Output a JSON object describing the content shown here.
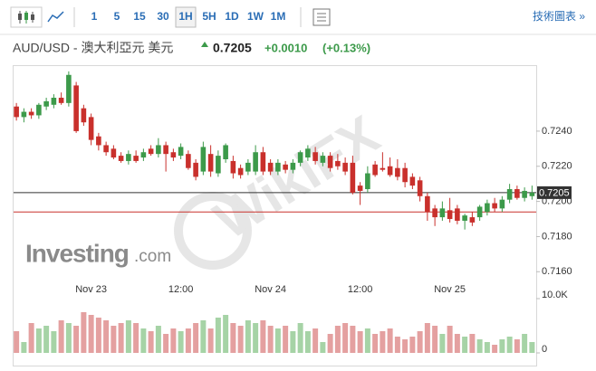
{
  "toolbar": {
    "intervals": [
      "1",
      "5",
      "15",
      "30",
      "1H",
      "5H",
      "1D",
      "1W",
      "1M"
    ],
    "active_interval": "1H",
    "link": "技術圖表 »"
  },
  "header": {
    "symbol": "AUD/USD - 澳大利亞元 美元",
    "price": "0.7205",
    "change": "+0.0010",
    "change_pct": "(+0.13%)"
  },
  "watermark": {
    "brand": "Investing",
    "domain": ".com",
    "overlay": "WikiFX"
  },
  "chart_data": {
    "type": "candlestick",
    "categories": [
      null,
      null,
      null,
      null,
      null,
      null,
      null,
      null,
      null,
      null,
      "Nov 23",
      null,
      null,
      null,
      null,
      null,
      null,
      null,
      null,
      null,
      null,
      null,
      "12:00",
      null,
      null,
      null,
      null,
      null,
      null,
      null,
      null,
      null,
      null,
      null,
      "Nov 24",
      null,
      null,
      null,
      null,
      null,
      null,
      null,
      null,
      null,
      null,
      null,
      "12:00",
      null,
      null,
      null,
      null,
      null,
      null,
      null,
      null,
      null,
      null,
      null,
      "Nov 25",
      null,
      null,
      null,
      null,
      null,
      null,
      null,
      null,
      null,
      null,
      null
    ],
    "open": [
      0.7254,
      0.7248,
      0.7251,
      0.7249,
      0.7254,
      0.7255,
      0.7259,
      0.7256,
      0.7266,
      0.7253,
      0.7248,
      0.7237,
      0.7232,
      0.723,
      0.7226,
      0.7223,
      0.7226,
      0.7225,
      0.723,
      0.7227,
      0.7232,
      0.7228,
      0.7226,
      0.7227,
      0.7222,
      0.7217,
      0.7227,
      0.7216,
      0.7224,
      0.7223,
      0.7219,
      0.7217,
      0.7217,
      0.7228,
      0.7222,
      0.7217,
      0.7221,
      0.7218,
      0.7222,
      0.7225,
      0.7228,
      0.7222,
      0.7226,
      0.7223,
      0.7222,
      0.7222,
      0.7209,
      0.7207,
      0.7221,
      0.7219,
      0.722,
      0.7219,
      0.7219,
      0.7214,
      0.7212,
      0.7203,
      0.7196,
      0.7191,
      0.7195,
      0.7196,
      0.7189,
      0.7191,
      0.7191,
      0.7194,
      0.7199,
      0.7196,
      0.7201,
      0.7207,
      0.7202,
      0.7203
    ],
    "high": [
      0.7256,
      0.7253,
      0.7253,
      0.7256,
      0.7259,
      0.7261,
      0.7262,
      0.7274,
      0.7268,
      0.7255,
      0.725,
      0.7239,
      0.7234,
      0.7232,
      0.7228,
      0.7229,
      0.7229,
      0.723,
      0.7232,
      0.7236,
      0.7234,
      0.723,
      0.7233,
      0.7229,
      0.7224,
      0.7234,
      0.7232,
      0.7229,
      0.7233,
      0.7226,
      0.7221,
      0.7224,
      0.7232,
      0.7231,
      0.7224,
      0.7224,
      0.7223,
      0.7224,
      0.7229,
      0.7232,
      0.7231,
      0.7228,
      0.7228,
      0.7227,
      0.7225,
      0.7226,
      0.7211,
      0.722,
      0.7223,
      0.7228,
      0.7225,
      0.7224,
      0.7222,
      0.7216,
      0.7214,
      0.7205,
      0.7198,
      0.72,
      0.7202,
      0.7198,
      0.7193,
      0.7194,
      0.7198,
      0.7201,
      0.7202,
      0.7203,
      0.721,
      0.7209,
      0.7208,
      0.7209
    ],
    "low": [
      0.7246,
      0.7245,
      0.7247,
      0.7247,
      0.7252,
      0.7253,
      0.7255,
      0.7254,
      0.7239,
      0.7243,
      0.7232,
      0.7229,
      0.7226,
      0.7224,
      0.7222,
      0.7221,
      0.7222,
      0.7223,
      0.7226,
      0.7225,
      0.7217,
      0.7223,
      0.7224,
      0.7218,
      0.7212,
      0.7215,
      0.7214,
      0.7214,
      0.7222,
      0.7213,
      0.7213,
      0.7215,
      0.7215,
      0.7215,
      0.7215,
      0.7215,
      0.7216,
      0.7216,
      0.722,
      0.7223,
      0.7221,
      0.722,
      0.7217,
      0.7218,
      0.7215,
      0.7204,
      0.7198,
      0.7205,
      0.7214,
      0.7217,
      0.7214,
      0.7212,
      0.7208,
      0.7207,
      0.72,
      0.7189,
      0.7186,
      0.7189,
      0.7188,
      0.7187,
      0.7184,
      0.7186,
      0.7189,
      0.7192,
      0.7194,
      0.7194,
      0.7199,
      0.7201,
      0.72,
      0.7201
    ],
    "close": [
      0.7248,
      0.7251,
      0.7249,
      0.7255,
      0.7257,
      0.7259,
      0.7256,
      0.7272,
      0.724,
      0.7245,
      0.7235,
      0.7232,
      0.7228,
      0.7225,
      0.7223,
      0.7227,
      0.7223,
      0.7228,
      0.7227,
      0.7232,
      0.7227,
      0.7225,
      0.7231,
      0.7219,
      0.7214,
      0.7231,
      0.7217,
      0.7226,
      0.7232,
      0.7216,
      0.7215,
      0.7222,
      0.7228,
      0.7217,
      0.7217,
      0.7222,
      0.7218,
      0.7222,
      0.7228,
      0.723,
      0.7223,
      0.7226,
      0.7219,
      0.722,
      0.7217,
      0.7205,
      0.7206,
      0.7216,
      0.7215,
      0.7218,
      0.7215,
      0.7214,
      0.7211,
      0.7209,
      0.7203,
      0.7194,
      0.7191,
      0.7196,
      0.719,
      0.7189,
      0.7192,
      0.7188,
      0.7197,
      0.7199,
      0.7196,
      0.7201,
      0.7207,
      0.7202,
      0.7206,
      0.7205
    ],
    "volume": [
      4000,
      2000,
      5500,
      4500,
      5000,
      4000,
      6000,
      5500,
      5000,
      7500,
      7000,
      6500,
      6000,
      5000,
      5500,
      6000,
      5500,
      4500,
      4000,
      5000,
      3500,
      4500,
      4000,
      4500,
      5500,
      6000,
      4500,
      6500,
      7000,
      5500,
      5000,
      6000,
      5500,
      6000,
      5000,
      4500,
      5000,
      4000,
      5500,
      4000,
      4500,
      2000,
      3500,
      5000,
      5500,
      5000,
      4000,
      4500,
      3500,
      4000,
      4500,
      3000,
      2500,
      3000,
      4000,
      5500,
      5000,
      3500,
      5000,
      3500,
      3000,
      3500,
      2500,
      2000,
      1500,
      2500,
      3000,
      2500,
      3500,
      2000
    ],
    "up_color": "#3c9a4a",
    "down_color": "#c9302c",
    "volume_up_color": "#a6d3a6",
    "volume_down_color": "#e4a0a0",
    "ylim": [
      0.7155,
      0.7276
    ],
    "yticks": [
      {
        "value": 0.716,
        "label": "0.7160"
      },
      {
        "value": 0.718,
        "label": "0.7180"
      },
      {
        "value": 0.72,
        "label": "0.7200"
      },
      {
        "value": 0.722,
        "label": "0.7220"
      },
      {
        "value": 0.724,
        "label": "0.7240"
      }
    ],
    "volume_ylim": [
      0,
      10000
    ],
    "volume_ticks": [
      0,
      {
        "value": 10000,
        "label": "10.0K"
      }
    ],
    "last_price": 0.7205,
    "reference_line": 0.7194
  }
}
